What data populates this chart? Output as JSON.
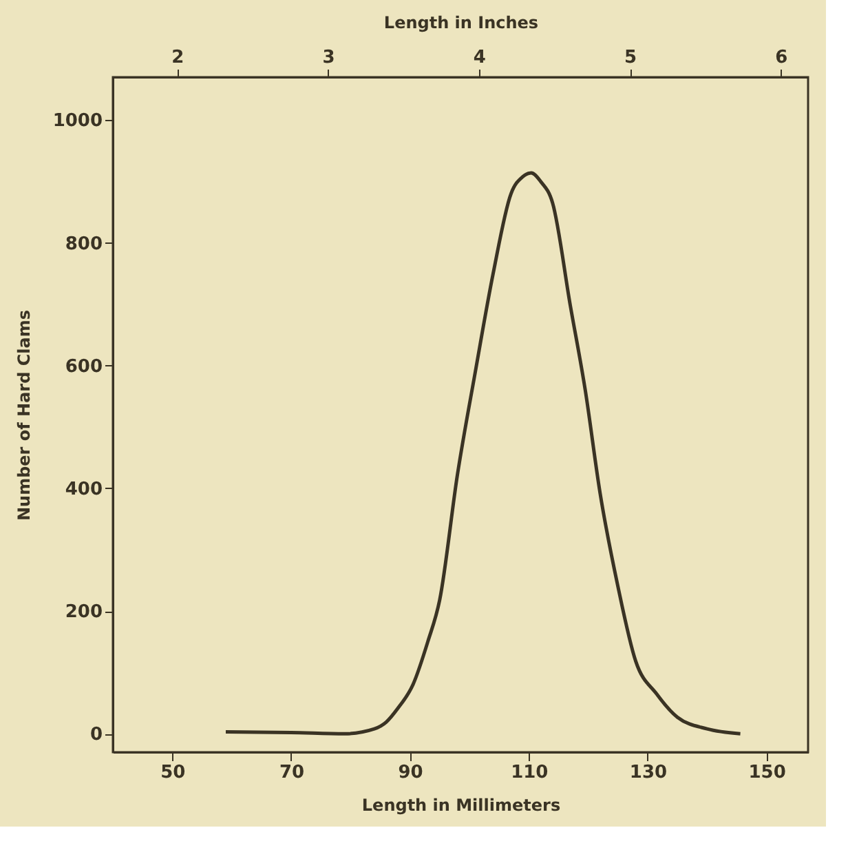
{
  "chart_data": {
    "type": "line",
    "xlabel": "Length in Millimeters",
    "ylabel": "Number of Hard Clams",
    "x2label": "Length in Inches",
    "x": [
      59,
      70,
      79,
      84,
      86,
      88,
      90.5,
      93,
      95,
      98,
      101,
      104,
      107,
      109,
      110.4,
      112,
      114,
      117,
      119.5,
      122,
      125,
      128,
      131.5,
      135,
      140,
      145.6
    ],
    "values": [
      3,
      2,
      0,
      8,
      19,
      42,
      80,
      150,
      218,
      423,
      590,
      750,
      880,
      908,
      914,
      900,
      865,
      697,
      560,
      392,
      240,
      118,
      65,
      27,
      8,
      0
    ],
    "color": "#3a3324",
    "xlim": [
      40,
      157
    ],
    "xticks": [
      50,
      70,
      90,
      110,
      130,
      150
    ],
    "ylim": [
      -30,
      1070
    ],
    "yticks": [
      0,
      200,
      400,
      600,
      800,
      1000
    ],
    "x2lim": [
      1.575,
      6.181
    ],
    "x2ticks": [
      2,
      3,
      4,
      5,
      6
    ],
    "grid": false,
    "line_style": "solid"
  }
}
